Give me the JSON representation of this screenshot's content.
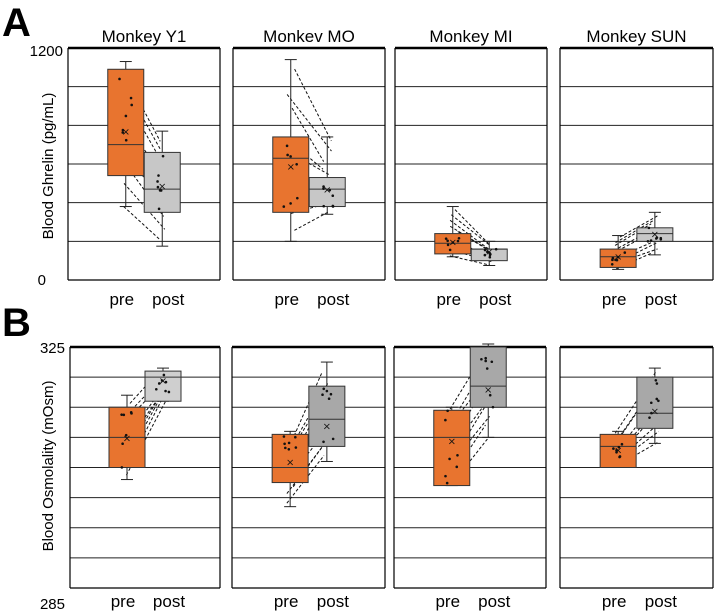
{
  "figure": {
    "panel_a_label": "A",
    "panel_b_label": "B"
  },
  "colors": {
    "pre": "#e8742f",
    "post_a": "#c7c7c7",
    "post_b_light": "#cfcfcf",
    "post_b_dark": "#a8a8a8"
  },
  "chart_data": [
    {
      "type": "box",
      "panel": "A",
      "ylabel": "Blood Ghrelin (pg/mL)",
      "ylim": [
        0,
        1200
      ],
      "yticks": [
        0,
        1200
      ],
      "grid_step": 200,
      "x_categories": [
        "pre",
        "post"
      ],
      "subplots": [
        {
          "title": "Monkey Y1",
          "pre": {
            "min": 380,
            "q1": 540,
            "median": 700,
            "q3": 1090,
            "max": 1130,
            "mean": 770
          },
          "post": {
            "min": 175,
            "q1": 350,
            "median": 470,
            "q3": 660,
            "max": 770,
            "mean": 490
          }
        },
        {
          "title": "Monkev MO",
          "pre": {
            "min": 200,
            "q1": 350,
            "median": 630,
            "q3": 740,
            "max": 1140,
            "mean": 590
          },
          "post": {
            "min": 340,
            "q1": 380,
            "median": 470,
            "q3": 530,
            "max": 740,
            "mean": 470
          }
        },
        {
          "title": "Monkey MI",
          "pre": {
            "min": 120,
            "q1": 135,
            "median": 190,
            "q3": 240,
            "max": 380,
            "mean": 200
          },
          "post": {
            "min": 75,
            "q1": 100,
            "median": 160,
            "q3": 160,
            "max": 200,
            "mean": 150
          }
        },
        {
          "title": "Monkey SUN",
          "pre": {
            "min": 55,
            "q1": 65,
            "median": 120,
            "q3": 160,
            "max": 230,
            "mean": 125
          },
          "post": {
            "min": 130,
            "q1": 200,
            "median": 240,
            "q3": 270,
            "max": 350,
            "mean": 240
          }
        }
      ]
    },
    {
      "type": "box",
      "panel": "B",
      "ylabel": "Blood Osmolality (mOsm)",
      "ylim": [
        285,
        325
      ],
      "yticks": [
        285,
        325
      ],
      "grid_step": 5,
      "x_categories": [
        "pre",
        "post"
      ],
      "subplots": [
        {
          "title": "",
          "pre": {
            "min": 303.0,
            "q1": 305.0,
            "median": 310.0,
            "q3": 315.0,
            "max": 317.0,
            "mean": 310.0
          },
          "post": {
            "min": 316.0,
            "q1": 316.0,
            "median": 320.0,
            "q3": 321.0,
            "max": 321.5,
            "mean": 319.5
          }
        },
        {
          "title": "",
          "pre": {
            "min": 298.5,
            "q1": 302.5,
            "median": 305.0,
            "q3": 310.5,
            "max": 311.0,
            "mean": 306.0
          },
          "post": {
            "min": 306.0,
            "q1": 308.5,
            "median": 313.0,
            "q3": 318.5,
            "max": 322.5,
            "mean": 312.0
          }
        },
        {
          "title": "",
          "pre": {
            "min": 302.0,
            "q1": 302.0,
            "median": 310.0,
            "q3": 314.5,
            "max": 315.0,
            "mean": 309.5
          },
          "post": {
            "min": 310.0,
            "q1": 315.0,
            "median": 318.5,
            "q3": 325.0,
            "max": 325.5,
            "mean": 318.0
          }
        },
        {
          "title": "",
          "pre": {
            "min": 305.0,
            "q1": 305.0,
            "median": 308.5,
            "q3": 310.5,
            "max": 311.0,
            "mean": 308.0
          },
          "post": {
            "min": 309.0,
            "q1": 311.5,
            "median": 314.0,
            "q3": 320.0,
            "max": 321.5,
            "mean": 314.5
          }
        }
      ]
    }
  ]
}
